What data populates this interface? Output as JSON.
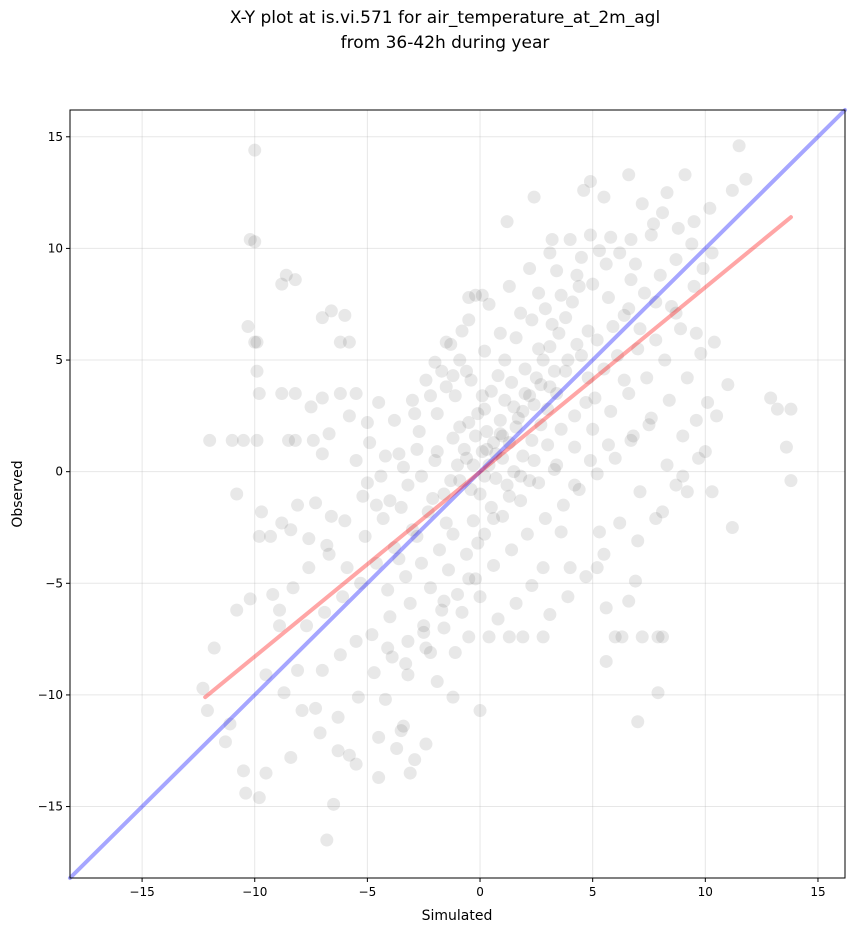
{
  "chart_data": {
    "type": "scatter",
    "title": "X-Y plot at is.vi.571 for air_temperature_at_2m_agl",
    "subtitle": "from 36-42h during year",
    "xlabel": "Simulated",
    "ylabel": "Observed",
    "xlim": [
      -18.2,
      16.2
    ],
    "ylim": [
      -18.2,
      16.2
    ],
    "xticks": [
      -15,
      -10,
      -5,
      0,
      5,
      10,
      15
    ],
    "yticks": [
      -15,
      -10,
      -5,
      0,
      5,
      10,
      15
    ],
    "tick_labels": [
      "−15",
      "−10",
      "−5",
      "0",
      "5",
      "10",
      "15"
    ],
    "grid": true,
    "legend": "none",
    "colors": {
      "points": "#000000",
      "fit_line": "#ff0000",
      "one_to_one": "#0000ff"
    },
    "lines": [
      {
        "kind": "1:1 reference",
        "x": [
          -18.2,
          16.2
        ],
        "y": [
          -18.2,
          16.2
        ]
      },
      {
        "kind": "linear fit",
        "x": [
          -12.2,
          13.8
        ],
        "y": [
          -10.1,
          11.4
        ]
      }
    ],
    "points": [
      [
        -10,
        14.4
      ],
      [
        -10.2,
        10.4
      ],
      [
        -10,
        10.3
      ],
      [
        -10.3,
        6.5
      ],
      [
        -10,
        5.8
      ],
      [
        -9.9,
        5.8
      ],
      [
        -8.6,
        8.8
      ],
      [
        -8.8,
        8.4
      ],
      [
        -8.2,
        8.6
      ],
      [
        -7,
        6.9
      ],
      [
        -6.6,
        7.2
      ],
      [
        -6,
        7
      ],
      [
        -12,
        1.4
      ],
      [
        -11,
        1.4
      ],
      [
        -10.5,
        1.4
      ],
      [
        -9.9,
        1.4
      ],
      [
        -8.5,
        1.4
      ],
      [
        -8.2,
        1.4
      ],
      [
        -7.4,
        1.4
      ],
      [
        -7,
        0.8
      ],
      [
        -6.7,
        1.7
      ],
      [
        -9.8,
        3.5
      ],
      [
        -8.8,
        3.5
      ],
      [
        -8.2,
        3.5
      ],
      [
        -7,
        3.3
      ],
      [
        -6.2,
        3.5
      ],
      [
        -5.5,
        3.5
      ],
      [
        -6.2,
        5.8
      ],
      [
        -5.8,
        5.8
      ],
      [
        -7.5,
        2.9
      ],
      [
        -5.8,
        2.5
      ],
      [
        -5,
        2.2
      ],
      [
        -9.9,
        4.5
      ],
      [
        -10.8,
        -1
      ],
      [
        -9.7,
        -1.8
      ],
      [
        -9.8,
        -2.9
      ],
      [
        -9.3,
        -2.9
      ],
      [
        -8.8,
        -2.3
      ],
      [
        -8.1,
        -1.5
      ],
      [
        -7.3,
        -1.4
      ],
      [
        -6.6,
        -2
      ],
      [
        -5.5,
        0.5
      ],
      [
        -5,
        -0.5
      ],
      [
        -4.6,
        -1.5
      ],
      [
        -4,
        -1.3
      ],
      [
        -3.2,
        -0.6
      ],
      [
        -2.8,
        1
      ],
      [
        -2,
        0.5
      ],
      [
        -1.5,
        3.8
      ],
      [
        -1.2,
        4.3
      ],
      [
        -0.8,
        6.3
      ],
      [
        -0.5,
        7.8
      ],
      [
        -0.2,
        7.9
      ],
      [
        0.1,
        7.9
      ],
      [
        1.2,
        11.2
      ],
      [
        2.4,
        12.3
      ],
      [
        3.2,
        10.4
      ],
      [
        4.6,
        12.6
      ],
      [
        4.9,
        13
      ],
      [
        5.5,
        12.3
      ],
      [
        6.6,
        13.3
      ],
      [
        7.2,
        12
      ],
      [
        8.3,
        12.5
      ],
      [
        9.1,
        13.3
      ],
      [
        10.2,
        11.8
      ],
      [
        11.2,
        12.6
      ],
      [
        11.5,
        14.6
      ],
      [
        11.8,
        13.1
      ],
      [
        12.9,
        3.3
      ],
      [
        13.2,
        2.8
      ],
      [
        13.8,
        2.8
      ],
      [
        13.6,
        1.1
      ],
      [
        13.8,
        -0.4
      ],
      [
        11.2,
        -2.5
      ],
      [
        11,
        3.9
      ],
      [
        10.4,
        5.8
      ],
      [
        9.6,
        6.2
      ],
      [
        8.7,
        7.1
      ],
      [
        10.5,
        2.5
      ],
      [
        10,
        0.9
      ],
      [
        10.3,
        -0.9
      ],
      [
        9.2,
        -0.9
      ],
      [
        8.7,
        -0.6
      ],
      [
        8.1,
        -1.8
      ],
      [
        7.8,
        -2.1
      ],
      [
        7.1,
        -0.9
      ],
      [
        6.9,
        -4.9
      ],
      [
        6.6,
        -5.8
      ],
      [
        5.6,
        -6.1
      ],
      [
        6,
        -7.4
      ],
      [
        6.3,
        -7.4
      ],
      [
        7.2,
        -7.4
      ],
      [
        7.9,
        -7.4
      ],
      [
        8.1,
        -7.4
      ],
      [
        5.6,
        -8.5
      ],
      [
        7,
        -11.2
      ],
      [
        7.9,
        -9.9
      ],
      [
        5.2,
        -4.3
      ],
      [
        4,
        -4.3
      ],
      [
        2.8,
        -4.3
      ],
      [
        3.6,
        -2.7
      ],
      [
        5.3,
        -2.7
      ],
      [
        2.8,
        -7.4
      ],
      [
        1.9,
        -7.4
      ],
      [
        1.3,
        -7.4
      ],
      [
        0.4,
        -7.4
      ],
      [
        -0.5,
        -7.4
      ],
      [
        -1.1,
        -8.1
      ],
      [
        -2.2,
        -8.1
      ],
      [
        -2.4,
        -12.2
      ],
      [
        -3.1,
        -13.5
      ],
      [
        -3.5,
        -11.6
      ],
      [
        -4.5,
        -13.7
      ],
      [
        -5.8,
        -12.7
      ],
      [
        -6.5,
        -14.9
      ],
      [
        -6.8,
        -16.5
      ],
      [
        -8.4,
        -12.8
      ],
      [
        -9.5,
        -13.5
      ],
      [
        -9.8,
        -14.6
      ],
      [
        -10.4,
        -14.4
      ],
      [
        -10.5,
        -13.4
      ],
      [
        -11.1,
        -11.3
      ],
      [
        -11.3,
        -12.1
      ],
      [
        -12.1,
        -10.7
      ],
      [
        -12.3,
        -9.7
      ],
      [
        -11.8,
        -7.9
      ],
      [
        -10.8,
        -6.2
      ],
      [
        -10.2,
        -5.7
      ],
      [
        -9.2,
        -5.5
      ],
      [
        -8.9,
        -6.9
      ],
      [
        -8.1,
        -8.9
      ],
      [
        -7.3,
        -10.6
      ],
      [
        -6.3,
        -11
      ],
      [
        -5.4,
        -10.1
      ],
      [
        -4.2,
        -10.2
      ],
      [
        -3.2,
        -9.1
      ],
      [
        -1.9,
        -9.4
      ],
      [
        -1.2,
        -10.1
      ],
      [
        0,
        -10.7
      ],
      [
        -3.4,
        -11.4
      ],
      [
        -2.5,
        -7.2
      ],
      [
        -1.6,
        -5.8
      ],
      [
        -0.5,
        -4.8
      ],
      [
        -0.1,
        -3.2
      ],
      [
        0.6,
        -2.1
      ],
      [
        1.3,
        -1.1
      ],
      [
        2.2,
        -0.4
      ],
      [
        3.3,
        0.1
      ],
      [
        4.2,
        -0.6
      ],
      [
        4.9,
        0.5
      ],
      [
        5.7,
        1.2
      ],
      [
        6.8,
        1.6
      ],
      [
        7.6,
        2.4
      ],
      [
        8.4,
        3.2
      ],
      [
        9.2,
        4.2
      ],
      [
        9.8,
        5.3
      ],
      [
        8.9,
        6.4
      ],
      [
        7.8,
        7.6
      ],
      [
        6.7,
        8.6
      ],
      [
        5.6,
        9.3
      ],
      [
        4.5,
        9.6
      ],
      [
        3.4,
        9
      ],
      [
        2.6,
        8
      ],
      [
        1.8,
        7.1
      ],
      [
        0.9,
        6.2
      ],
      [
        0.2,
        5.4
      ],
      [
        -0.6,
        4.5
      ],
      [
        -1.1,
        3.4
      ],
      [
        -1.9,
        2.6
      ],
      [
        -2.7,
        1.8
      ],
      [
        -3.6,
        0.8
      ],
      [
        -4.4,
        -0.2
      ],
      [
        -5.2,
        -1.1
      ],
      [
        -6,
        -2.2
      ],
      [
        -6.8,
        -3.3
      ],
      [
        -7.6,
        -4.3
      ],
      [
        -8.3,
        -5.2
      ],
      [
        -8.9,
        -6.2
      ],
      [
        -7.7,
        -6.9
      ],
      [
        -6.9,
        -6.3
      ],
      [
        -6.1,
        -5.6
      ],
      [
        -5.3,
        -5
      ],
      [
        -4.6,
        -4.1
      ],
      [
        -3.8,
        -3.4
      ],
      [
        -3,
        -2.6
      ],
      [
        -2.3,
        -1.8
      ],
      [
        -1.6,
        -1
      ],
      [
        -0.9,
        -0.4
      ],
      [
        -0.3,
        0.3
      ],
      [
        0.3,
        1
      ],
      [
        1,
        1.6
      ],
      [
        1.7,
        2.4
      ],
      [
        2.4,
        3
      ],
      [
        3.1,
        3.8
      ],
      [
        3.8,
        4.5
      ],
      [
        4.5,
        5.2
      ],
      [
        5.2,
        5.9
      ],
      [
        5.9,
        6.5
      ],
      [
        6.6,
        7.3
      ],
      [
        7.3,
        8
      ],
      [
        8,
        8.8
      ],
      [
        8.7,
        9.5
      ],
      [
        9.4,
        10.2
      ],
      [
        -4.8,
        -7.3
      ],
      [
        -4,
        -6.5
      ],
      [
        -3.1,
        -5.9
      ],
      [
        -2.2,
        -5.2
      ],
      [
        -1.4,
        -4.4
      ],
      [
        -0.6,
        -3.7
      ],
      [
        0.2,
        -2.8
      ],
      [
        1,
        -2
      ],
      [
        1.8,
        -1.3
      ],
      [
        2.6,
        -0.5
      ],
      [
        3.4,
        0.3
      ],
      [
        4.2,
        1.1
      ],
      [
        5,
        1.9
      ],
      [
        5.8,
        2.7
      ],
      [
        6.6,
        3.5
      ],
      [
        7.4,
        4.2
      ],
      [
        8.2,
        5
      ],
      [
        -7,
        -8.9
      ],
      [
        -6.2,
        -8.2
      ],
      [
        -5.5,
        -7.6
      ],
      [
        -4.7,
        -9
      ],
      [
        -3.9,
        -8.3
      ],
      [
        -3.2,
        -7.6
      ],
      [
        -2.5,
        -6.9
      ],
      [
        -1.7,
        -6.2
      ],
      [
        -1,
        -5.5
      ],
      [
        -0.2,
        -4.8
      ],
      [
        0.6,
        -4.2
      ],
      [
        1.4,
        -3.5
      ],
      [
        2.1,
        -2.8
      ],
      [
        2.9,
        -2.1
      ],
      [
        3.7,
        -1.5
      ],
      [
        4.4,
        -0.8
      ],
      [
        5.2,
        -0.1
      ],
      [
        6,
        0.6
      ],
      [
        6.7,
        1.4
      ],
      [
        7.5,
        2.1
      ],
      [
        -2,
        4.9
      ],
      [
        -1.3,
        5.7
      ],
      [
        -0.5,
        6.8
      ],
      [
        0.4,
        7.5
      ],
      [
        1.3,
        8.3
      ],
      [
        2.2,
        9.1
      ],
      [
        3.1,
        9.8
      ],
      [
        4,
        10.4
      ],
      [
        4.9,
        10.6
      ],
      [
        5.8,
        10.5
      ],
      [
        6.7,
        10.4
      ],
      [
        7.6,
        10.6
      ],
      [
        -0.5,
        2.2
      ],
      [
        -0.2,
        1.6
      ],
      [
        0.1,
        0.9
      ],
      [
        0.4,
        0.3
      ],
      [
        0.7,
        -0.3
      ],
      [
        1,
        0.6
      ],
      [
        1.3,
        1.3
      ],
      [
        1.6,
        2
      ],
      [
        1.9,
        2.7
      ],
      [
        2.2,
        3.4
      ],
      [
        0.2,
        2.8
      ],
      [
        0.5,
        3.6
      ],
      [
        0.8,
        4.3
      ],
      [
        1.1,
        5
      ],
      [
        -0.7,
        1
      ],
      [
        -1,
        0.3
      ],
      [
        -1.3,
        -0.4
      ],
      [
        -0.9,
        2
      ],
      [
        2.5,
        4.2
      ],
      [
        2.8,
        5
      ],
      [
        3.1,
        5.6
      ],
      [
        3.5,
        6.2
      ],
      [
        3.8,
        6.9
      ],
      [
        4.1,
        7.6
      ],
      [
        4.4,
        8.3
      ],
      [
        1.5,
        0
      ],
      [
        1.9,
        0.7
      ],
      [
        2.3,
        1.4
      ],
      [
        2.7,
        2.1
      ],
      [
        3,
        2.8
      ],
      [
        3.4,
        3.5
      ],
      [
        4.8,
        4.2
      ],
      [
        5.1,
        3.3
      ],
      [
        5.5,
        4.6
      ],
      [
        6.1,
        5.2
      ],
      [
        6.4,
        4.1
      ],
      [
        7,
        5.5
      ],
      [
        0,
        -1
      ],
      [
        0.5,
        -1.6
      ],
      [
        -0.3,
        -2.2
      ],
      [
        -1.2,
        -2.8
      ],
      [
        -1.8,
        -3.5
      ],
      [
        -2.6,
        -4.1
      ],
      [
        -3.3,
        -4.7
      ],
      [
        -4.1,
        -5.3
      ],
      [
        1.1,
        3.2
      ],
      [
        1.4,
        4
      ],
      [
        2,
        4.6
      ],
      [
        2.6,
        5.5
      ],
      [
        3.2,
        6.6
      ],
      [
        1.6,
        6
      ],
      [
        2.3,
        6.8
      ],
      [
        0.9,
        2.3
      ],
      [
        0.6,
        1.3
      ],
      [
        0.3,
        1.8
      ],
      [
        -0.1,
        2.6
      ],
      [
        1.2,
        -0.6
      ],
      [
        1.8,
        -0.2
      ],
      [
        2.4,
        0.5
      ],
      [
        3,
        1.2
      ],
      [
        3.6,
        1.9
      ],
      [
        4.2,
        2.5
      ],
      [
        4.7,
        3.1
      ],
      [
        0.7,
        0.8
      ],
      [
        0.9,
        1.7
      ],
      [
        1.5,
        2.9
      ],
      [
        2,
        3.5
      ],
      [
        2.7,
        3.9
      ],
      [
        3.3,
        4.5
      ],
      [
        3.9,
        5
      ],
      [
        4.3,
        5.7
      ],
      [
        4.8,
        6.3
      ],
      [
        -9.5,
        -9.1
      ],
      [
        -8.7,
        -9.9
      ],
      [
        -7.9,
        -10.7
      ],
      [
        -7.1,
        -11.7
      ],
      [
        -6.3,
        -12.5
      ],
      [
        -5.5,
        -13.1
      ],
      [
        -4.5,
        -11.9
      ],
      [
        -3.7,
        -12.4
      ],
      [
        -2.9,
        -12.9
      ],
      [
        -8.4,
        -2.6
      ],
      [
        -7.6,
        -3
      ],
      [
        -6.7,
        -3.7
      ],
      [
        -5.9,
        -4.3
      ],
      [
        -5.1,
        -2.9
      ],
      [
        -4.3,
        -2.1
      ],
      [
        -3.5,
        -1.6
      ],
      [
        -4.9,
        1.3
      ],
      [
        -4.2,
        0.7
      ],
      [
        -3.4,
        0.2
      ],
      [
        -2.6,
        -0.2
      ],
      [
        -1.9,
        0.9
      ],
      [
        -1.2,
        1.5
      ],
      [
        9.5,
        8.3
      ],
      [
        9.9,
        9.1
      ],
      [
        10.3,
        9.8
      ],
      [
        8.8,
        10.9
      ],
      [
        9.5,
        11.2
      ],
      [
        7.7,
        11.1
      ],
      [
        8.1,
        11.6
      ],
      [
        9,
        1.6
      ],
      [
        9.6,
        2.3
      ],
      [
        10.1,
        3.1
      ],
      [
        8.3,
        0.3
      ],
      [
        9,
        -0.2
      ],
      [
        9.7,
        0.6
      ],
      [
        6.2,
        -2.3
      ],
      [
        7,
        -3.1
      ],
      [
        5.5,
        -3.7
      ],
      [
        4.7,
        -4.7
      ],
      [
        3.9,
        -5.6
      ],
      [
        3.1,
        -6.4
      ],
      [
        2.3,
        -5.1
      ],
      [
        1.6,
        -5.9
      ],
      [
        0.8,
        -6.6
      ],
      [
        0,
        -5.6
      ],
      [
        -0.8,
        -6.3
      ],
      [
        -1.6,
        -7
      ],
      [
        -2.4,
        -7.9
      ],
      [
        -3.3,
        -8.6
      ],
      [
        -4.1,
        -7.9
      ],
      [
        -1.5,
        -2.3
      ],
      [
        -2.1,
        -1.2
      ],
      [
        -2.8,
        -2.9
      ],
      [
        -3.6,
        -3.9
      ],
      [
        2.9,
        7.3
      ],
      [
        3.6,
        7.9
      ],
      [
        4.3,
        8.8
      ],
      [
        5,
        8.4
      ],
      [
        5.7,
        7.8
      ],
      [
        6.4,
        7
      ],
      [
        7.1,
        6.4
      ],
      [
        7.8,
        5.9
      ],
      [
        8.5,
        7.4
      ],
      [
        6.9,
        9.3
      ],
      [
        6.2,
        9.8
      ],
      [
        5.3,
        9.9
      ],
      [
        0.1,
        3.4
      ],
      [
        -0.4,
        4.1
      ],
      [
        -0.9,
        5
      ],
      [
        -1.5,
        5.8
      ],
      [
        -2.4,
        4.1
      ],
      [
        -3,
        3.2
      ],
      [
        -3.8,
        2.3
      ],
      [
        -4.5,
        3.1
      ],
      [
        -2.2,
        3.4
      ],
      [
        -2.9,
        2.6
      ],
      [
        -1.7,
        4.5
      ],
      [
        0.2,
        -0.2
      ],
      [
        -0.4,
        -0.8
      ],
      [
        -0.6,
        0.6
      ]
    ]
  }
}
